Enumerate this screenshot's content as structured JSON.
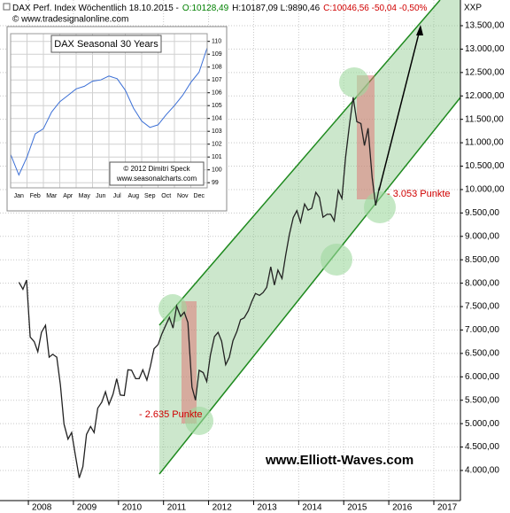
{
  "header": {
    "segments": [
      {
        "text": "DAX Perf. Index Wöchentlich  18.10.2015 -",
        "color": "#000000"
      },
      {
        "text": "O:10128,49",
        "color": "#008000"
      },
      {
        "text": "H:10187,09 L:9890,46",
        "color": "#000000"
      },
      {
        "text": "C:10046,56 -50,04 -0,50%",
        "color": "#d00000"
      }
    ],
    "source": "© www.tradesignalonline.com",
    "symbol": "XXP"
  },
  "annotations": {
    "drop_2011": "- 2.635 Punkte",
    "drop_2015": "- 3.053 Punkte",
    "website": "www.Elliott-Waves.com"
  },
  "chart_data": [
    {
      "type": "line",
      "color": "#222222",
      "grid": true,
      "x": [
        2007.79,
        2007.88,
        2007.96,
        2008.04,
        2008.13,
        2008.21,
        2008.29,
        2008.38,
        2008.46,
        2008.54,
        2008.63,
        2008.71,
        2008.79,
        2008.88,
        2008.96,
        2009.04,
        2009.13,
        2009.21,
        2009.29,
        2009.38,
        2009.46,
        2009.54,
        2009.63,
        2009.71,
        2009.79,
        2009.88,
        2009.96,
        2010.04,
        2010.13,
        2010.21,
        2010.29,
        2010.38,
        2010.46,
        2010.54,
        2010.63,
        2010.71,
        2010.79,
        2010.88,
        2010.96,
        2011.04,
        2011.13,
        2011.21,
        2011.29,
        2011.38,
        2011.46,
        2011.54,
        2011.63,
        2011.71,
        2011.79,
        2011.88,
        2011.96,
        2012.04,
        2012.13,
        2012.21,
        2012.29,
        2012.38,
        2012.46,
        2012.54,
        2012.63,
        2012.71,
        2012.79,
        2012.88,
        2012.96,
        2013.04,
        2013.13,
        2013.21,
        2013.29,
        2013.38,
        2013.46,
        2013.54,
        2013.63,
        2013.71,
        2013.79,
        2013.88,
        2013.96,
        2014.04,
        2014.13,
        2014.21,
        2014.29,
        2014.38,
        2014.46,
        2014.54,
        2014.63,
        2014.71,
        2014.79,
        2014.88,
        2014.96,
        2015.04,
        2015.13,
        2015.21,
        2015.29,
        2015.38,
        2015.46,
        2015.54,
        2015.63,
        2015.71,
        2015.79
      ],
      "values": [
        8020,
        7870,
        8067,
        6850,
        6750,
        6535,
        6950,
        7100,
        6420,
        6480,
        6420,
        5830,
        4990,
        4670,
        4810,
        4340,
        3840,
        4080,
        4770,
        4940,
        4810,
        5330,
        5460,
        5680,
        5410,
        5630,
        5960,
        5610,
        5600,
        6150,
        6140,
        5960,
        5960,
        6150,
        5930,
        6230,
        6600,
        6690,
        6910,
        7080,
        7270,
        7040,
        7510,
        7290,
        7380,
        7160,
        5780,
        5500,
        6140,
        6090,
        5900,
        6460,
        6860,
        6950,
        6760,
        6260,
        6420,
        6770,
        6970,
        7220,
        7260,
        7410,
        7610,
        7780,
        7740,
        7800,
        7910,
        8350,
        7960,
        8280,
        8100,
        8590,
        9030,
        9400,
        9550,
        9300,
        9690,
        9560,
        9600,
        9940,
        9830,
        9410,
        9470,
        9470,
        9330,
        9980,
        9810,
        10690,
        11400,
        11970,
        11450,
        11410,
        10940,
        11310,
        10260,
        9660,
        10046
      ],
      "xlim": [
        2007.37,
        2017.59
      ],
      "xticks": [
        2008,
        2009,
        2010,
        2011,
        2012,
        2013,
        2014,
        2015,
        2016,
        2017
      ],
      "ylim": [
        3356,
        14049
      ],
      "yticks": [
        {
          "value": 4000,
          "label": "4.000,00"
        },
        {
          "value": 4500,
          "label": "4.500,00"
        },
        {
          "value": 5000,
          "label": "5.000,00"
        },
        {
          "value": 5500,
          "label": "5.500,00"
        },
        {
          "value": 6000,
          "label": "6.000,00"
        },
        {
          "value": 6500,
          "label": "6.500,00"
        },
        {
          "value": 7000,
          "label": "7.000,00"
        },
        {
          "value": 7500,
          "label": "7.500,00"
        },
        {
          "value": 8000,
          "label": "8.000,00"
        },
        {
          "value": 8500,
          "label": "8.500,00"
        },
        {
          "value": 9000,
          "label": "9.000,00"
        },
        {
          "value": 9500,
          "label": "9.500,00"
        },
        {
          "value": 10000,
          "label": "10.000,00"
        },
        {
          "value": 10500,
          "label": "10.500,00"
        },
        {
          "value": 11000,
          "label": "11.000,00"
        },
        {
          "value": 11500,
          "label": "11.500,00"
        },
        {
          "value": 12000,
          "label": "12.000,00"
        },
        {
          "value": 12500,
          "label": "12.500,00"
        },
        {
          "value": 13000,
          "label": "13.000,00"
        },
        {
          "value": 13500,
          "label": "13.500,00"
        }
      ]
    },
    {
      "type": "line",
      "title": "DAX Seasonal 30 Years",
      "notes": [
        "© 2012 Dimitri Speck",
        "www.seasonalcharts.com"
      ],
      "color": "#3b6fd6",
      "grid": true,
      "categories": [
        "Jan",
        "Feb",
        "Mar",
        "Apr",
        "May",
        "Jun",
        "Jul",
        "Aug",
        "Sep",
        "Oct",
        "Nov",
        "Dec"
      ],
      "x": [
        0,
        0.5,
        1,
        1.5,
        2,
        2.5,
        3,
        3.5,
        4,
        4.5,
        5,
        5.5,
        6,
        6.5,
        7,
        7.5,
        8,
        8.5,
        9,
        9.5,
        10,
        10.5,
        11,
        11.5,
        12
      ],
      "values": [
        101.2,
        99.6,
        101,
        102.8,
        103.2,
        104.5,
        105.3,
        105.8,
        106.3,
        106.5,
        106.9,
        107,
        107.3,
        107.1,
        106.2,
        104.8,
        103.8,
        103.3,
        103.5,
        104.3,
        105,
        105.8,
        106.8,
        107.6,
        109.5
      ],
      "xlim": [
        0,
        12
      ],
      "ylim": [
        98.6,
        110.6
      ],
      "yticks": [
        99,
        100,
        101,
        102,
        103,
        104,
        105,
        106,
        107,
        108,
        109,
        110
      ]
    }
  ]
}
